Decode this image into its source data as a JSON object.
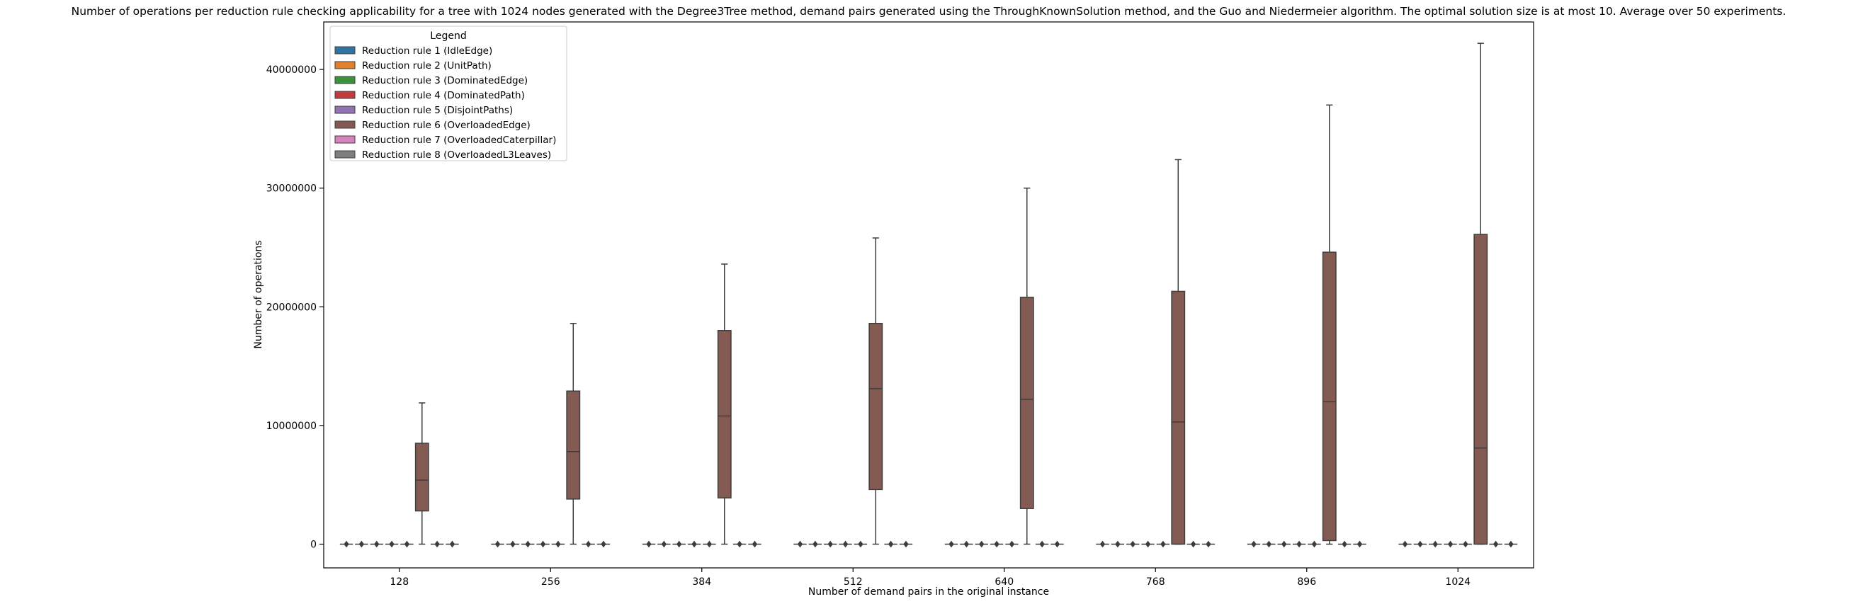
{
  "chart_data": {
    "type": "box",
    "title": "Number of operations per reduction rule checking applicability for a tree with 1024 nodes generated with the Degree3Tree method, demand pairs generated using the ThroughKnownSolution method, and the Guo and Niedermeier algorithm. The optimal solution size is at most 10. Average over 50 experiments.",
    "xlabel": "Number of demand pairs in the original instance",
    "ylabel": "Number of operations",
    "categories": [
      "128",
      "256",
      "384",
      "512",
      "640",
      "768",
      "896",
      "1024"
    ],
    "ylim": [
      -2000000,
      44000000
    ],
    "yticks": [
      0,
      10000000,
      20000000,
      30000000,
      40000000
    ],
    "ytick_labels": [
      "0",
      "10000000",
      "20000000",
      "30000000",
      "40000000"
    ],
    "grid": false,
    "legend": {
      "title": "Legend",
      "placement": "top-left",
      "entries": [
        {
          "name": "Reduction rule 1 (IdleEdge)",
          "color": "#3274a1"
        },
        {
          "name": "Reduction rule 2 (UnitPath)",
          "color": "#e1812c"
        },
        {
          "name": "Reduction rule 3 (DominatedEdge)",
          "color": "#3a923a"
        },
        {
          "name": "Reduction rule 4 (DominatedPath)",
          "color": "#c03d3e"
        },
        {
          "name": "Reduction rule 5 (DisjointPaths)",
          "color": "#9372b2"
        },
        {
          "name": "Reduction rule 6 (OverloadedEdge)",
          "color": "#845b53"
        },
        {
          "name": "Reduction rule 7 (OverloadedCaterpillar)",
          "color": "#d684bd"
        },
        {
          "name": "Reduction rule 8 (OverloadedL3Leaves)",
          "color": "#7f7f7f"
        }
      ]
    },
    "series": [
      {
        "rule": 1,
        "boxes": [
          [
            0,
            0,
            0,
            0,
            0
          ],
          [
            0,
            0,
            0,
            0,
            0
          ],
          [
            0,
            0,
            0,
            0,
            0
          ],
          [
            0,
            0,
            0,
            0,
            0
          ],
          [
            0,
            0,
            0,
            0,
            0
          ],
          [
            0,
            0,
            0,
            0,
            0
          ],
          [
            0,
            0,
            0,
            0,
            0
          ],
          [
            0,
            0,
            0,
            0,
            0
          ]
        ]
      },
      {
        "rule": 2,
        "boxes": [
          [
            0,
            0,
            0,
            0,
            0
          ],
          [
            0,
            0,
            0,
            0,
            0
          ],
          [
            0,
            0,
            0,
            0,
            0
          ],
          [
            0,
            0,
            0,
            0,
            0
          ],
          [
            0,
            0,
            0,
            0,
            0
          ],
          [
            0,
            0,
            0,
            0,
            0
          ],
          [
            0,
            0,
            0,
            0,
            0
          ],
          [
            0,
            0,
            0,
            0,
            0
          ]
        ]
      },
      {
        "rule": 3,
        "boxes": [
          [
            0,
            0,
            0,
            0,
            0
          ],
          [
            0,
            0,
            0,
            0,
            0
          ],
          [
            0,
            0,
            0,
            0,
            0
          ],
          [
            0,
            0,
            0,
            0,
            0
          ],
          [
            0,
            0,
            0,
            0,
            0
          ],
          [
            0,
            0,
            0,
            0,
            0
          ],
          [
            0,
            0,
            0,
            0,
            0
          ],
          [
            0,
            0,
            0,
            0,
            0
          ]
        ]
      },
      {
        "rule": 4,
        "boxes": [
          [
            0,
            0,
            0,
            0,
            0
          ],
          [
            0,
            0,
            0,
            0,
            0
          ],
          [
            0,
            0,
            0,
            0,
            0
          ],
          [
            0,
            0,
            0,
            0,
            0
          ],
          [
            0,
            0,
            0,
            0,
            0
          ],
          [
            0,
            0,
            0,
            0,
            0
          ],
          [
            0,
            0,
            0,
            0,
            0
          ],
          [
            0,
            0,
            0,
            0,
            0
          ]
        ]
      },
      {
        "rule": 5,
        "boxes": [
          [
            0,
            0,
            0,
            0,
            0
          ],
          [
            0,
            0,
            0,
            0,
            0
          ],
          [
            0,
            0,
            0,
            0,
            0
          ],
          [
            0,
            0,
            0,
            0,
            0
          ],
          [
            0,
            0,
            0,
            0,
            0
          ],
          [
            0,
            0,
            0,
            0,
            0
          ],
          [
            0,
            0,
            0,
            0,
            0
          ],
          [
            0,
            0,
            0,
            0,
            0
          ]
        ]
      },
      {
        "rule": 6,
        "boxes": [
          [
            0,
            2800000,
            5400000,
            8500000,
            11900000
          ],
          [
            0,
            3800000,
            7800000,
            12900000,
            18600000
          ],
          [
            0,
            3900000,
            10800000,
            18000000,
            23600000
          ],
          [
            0,
            4600000,
            13100000,
            18600000,
            25800000
          ],
          [
            0,
            3000000,
            12200000,
            20800000,
            30000000
          ],
          [
            0,
            0,
            10300000,
            21300000,
            32400000
          ],
          [
            0,
            300000,
            12000000,
            24600000,
            37000000
          ],
          [
            0,
            0,
            8100000,
            26100000,
            42200000
          ]
        ]
      },
      {
        "rule": 7,
        "boxes": [
          [
            0,
            0,
            0,
            0,
            0
          ],
          [
            0,
            0,
            0,
            0,
            0
          ],
          [
            0,
            0,
            0,
            0,
            0
          ],
          [
            0,
            0,
            0,
            0,
            0
          ],
          [
            0,
            0,
            0,
            0,
            0
          ],
          [
            0,
            0,
            0,
            0,
            0
          ],
          [
            0,
            0,
            0,
            0,
            0
          ],
          [
            0,
            0,
            0,
            0,
            0
          ]
        ]
      },
      {
        "rule": 8,
        "boxes": [
          [
            0,
            0,
            0,
            0,
            0
          ],
          [
            0,
            0,
            0,
            0,
            0
          ],
          [
            0,
            0,
            0,
            0,
            0
          ],
          [
            0,
            0,
            0,
            0,
            0
          ],
          [
            0,
            0,
            0,
            0,
            0
          ],
          [
            0,
            0,
            0,
            0,
            0
          ],
          [
            0,
            0,
            0,
            0,
            0
          ],
          [
            0,
            0,
            0,
            0,
            0
          ]
        ]
      }
    ]
  }
}
